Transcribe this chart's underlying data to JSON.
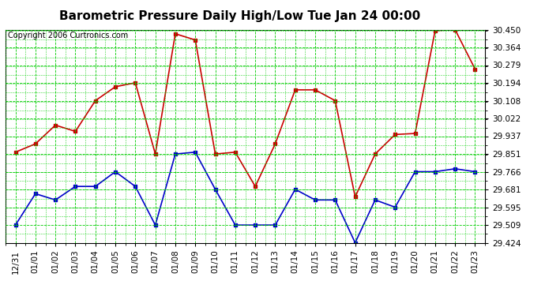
{
  "title": "Barometric Pressure Daily High/Low Tue Jan 24 00:00",
  "copyright": "Copyright 2006 Curtronics.com",
  "x_labels": [
    "12/31",
    "01/01",
    "01/02",
    "01/03",
    "01/04",
    "01/05",
    "01/06",
    "01/07",
    "01/08",
    "01/09",
    "01/10",
    "01/11",
    "01/12",
    "01/13",
    "01/14",
    "01/15",
    "01/16",
    "01/17",
    "01/18",
    "01/19",
    "01/20",
    "01/21",
    "01/22",
    "01/23"
  ],
  "y_ticks": [
    29.424,
    29.509,
    29.595,
    29.681,
    29.766,
    29.851,
    29.937,
    30.022,
    30.108,
    30.194,
    30.279,
    30.364,
    30.45
  ],
  "y_min": 29.424,
  "y_max": 30.45,
  "high_values": [
    29.86,
    29.9,
    29.99,
    29.96,
    30.108,
    30.175,
    30.194,
    29.851,
    30.43,
    30.4,
    29.851,
    29.86,
    29.695,
    29.9,
    30.16,
    30.16,
    30.108,
    29.645,
    29.851,
    29.945,
    29.95,
    30.445,
    30.45,
    30.26
  ],
  "low_values": [
    29.509,
    29.66,
    29.63,
    29.695,
    29.695,
    29.766,
    29.695,
    29.509,
    29.851,
    29.86,
    29.681,
    29.509,
    29.509,
    29.509,
    29.681,
    29.63,
    29.63,
    29.424,
    29.63,
    29.595,
    29.766,
    29.766,
    29.78,
    29.766
  ],
  "high_color": "#cc0000",
  "low_color": "#0000cc",
  "bg_color": "#ffffff",
  "grid_color": "#00cc00",
  "title_fontsize": 11,
  "copyright_fontsize": 7,
  "tick_fontsize": 7.5
}
